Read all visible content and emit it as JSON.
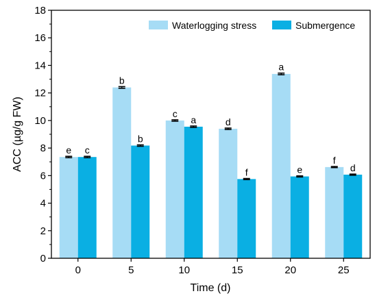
{
  "chart_data": {
    "type": "bar",
    "xlabel": "Time (d)",
    "ylabel": "ACC (µg/g FW)",
    "ylim": [
      0,
      18
    ],
    "yticks": [
      0,
      2,
      4,
      6,
      8,
      10,
      12,
      14,
      16,
      18
    ],
    "categories": [
      "0",
      "5",
      "10",
      "15",
      "20",
      "25"
    ],
    "legend_position": "top-right",
    "series": [
      {
        "name": "Waterlogging stress",
        "color": "#a6dcf5",
        "values": [
          7.35,
          12.4,
          10.0,
          9.4,
          13.38,
          6.62
        ],
        "errors": [
          0.05,
          0.06,
          0.05,
          0.05,
          0.06,
          0.04
        ],
        "letters": [
          "e",
          "b",
          "c",
          "d",
          "a",
          "f"
        ]
      },
      {
        "name": "Submergence",
        "color": "#0aafe3",
        "values": [
          7.35,
          8.18,
          9.55,
          5.75,
          5.94,
          6.07
        ],
        "errors": [
          0.05,
          0.05,
          0.05,
          0.04,
          0.04,
          0.04
        ],
        "letters": [
          "c",
          "b",
          "a",
          "f",
          "e",
          "d"
        ]
      }
    ]
  }
}
